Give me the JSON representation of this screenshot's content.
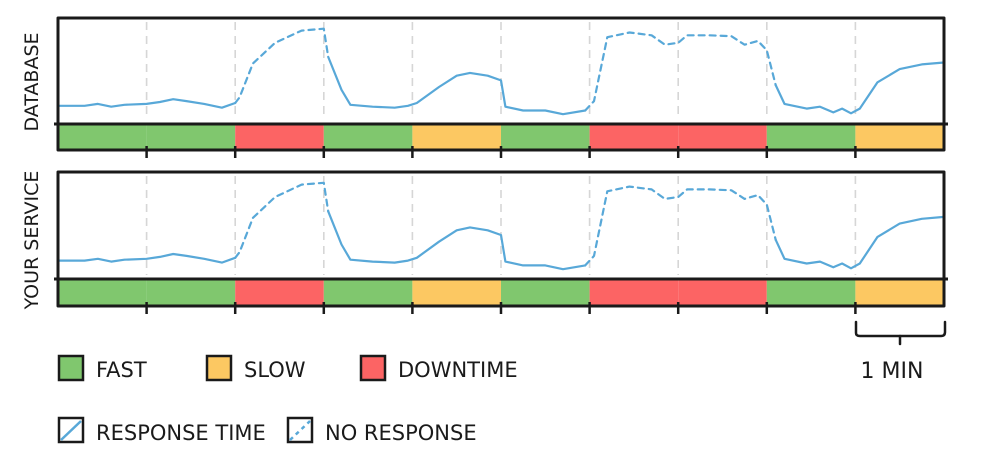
{
  "panels": [
    {
      "label": "DATABASE",
      "statuses": [
        "fast",
        "fast",
        "downtime",
        "fast",
        "slow",
        "fast",
        "downtime",
        "downtime",
        "fast",
        "slow"
      ],
      "response": [
        {
          "t": 0.0,
          "v": 0.13
        },
        {
          "t": 0.3,
          "v": 0.13
        },
        {
          "t": 0.45,
          "v": 0.15
        },
        {
          "t": 0.6,
          "v": 0.12
        },
        {
          "t": 0.75,
          "v": 0.14
        },
        {
          "t": 1.0,
          "v": 0.15
        },
        {
          "t": 1.15,
          "v": 0.17
        },
        {
          "t": 1.3,
          "v": 0.2
        },
        {
          "t": 1.45,
          "v": 0.18
        },
        {
          "t": 1.65,
          "v": 0.15
        },
        {
          "t": 1.85,
          "v": 0.11
        },
        {
          "t": 2.0,
          "v": 0.16
        },
        {
          "t": 2.05,
          "v": 0.22
        },
        {
          "t": 2.2,
          "v": 0.58
        },
        {
          "t": 2.45,
          "v": 0.8
        },
        {
          "t": 2.75,
          "v": 0.93
        },
        {
          "t": 3.0,
          "v": 0.95
        },
        {
          "t": 3.05,
          "v": 0.65
        },
        {
          "t": 3.2,
          "v": 0.3
        },
        {
          "t": 3.3,
          "v": 0.14
        },
        {
          "t": 3.55,
          "v": 0.12
        },
        {
          "t": 3.8,
          "v": 0.11
        },
        {
          "t": 3.95,
          "v": 0.13
        },
        {
          "t": 4.05,
          "v": 0.16
        },
        {
          "t": 4.3,
          "v": 0.33
        },
        {
          "t": 4.5,
          "v": 0.45
        },
        {
          "t": 4.65,
          "v": 0.48
        },
        {
          "t": 4.85,
          "v": 0.45
        },
        {
          "t": 5.0,
          "v": 0.4
        },
        {
          "t": 5.05,
          "v": 0.12
        },
        {
          "t": 5.25,
          "v": 0.08
        },
        {
          "t": 5.5,
          "v": 0.08
        },
        {
          "t": 5.7,
          "v": 0.04
        },
        {
          "t": 5.95,
          "v": 0.08
        },
        {
          "t": 6.05,
          "v": 0.18
        },
        {
          "t": 6.2,
          "v": 0.86
        },
        {
          "t": 6.45,
          "v": 0.91
        },
        {
          "t": 6.7,
          "v": 0.88
        },
        {
          "t": 6.85,
          "v": 0.78
        },
        {
          "t": 7.0,
          "v": 0.8
        },
        {
          "t": 7.1,
          "v": 0.88
        },
        {
          "t": 7.35,
          "v": 0.88
        },
        {
          "t": 7.6,
          "v": 0.87
        },
        {
          "t": 7.75,
          "v": 0.78
        },
        {
          "t": 7.9,
          "v": 0.82
        },
        {
          "t": 8.0,
          "v": 0.72
        },
        {
          "t": 8.1,
          "v": 0.35
        },
        {
          "t": 8.2,
          "v": 0.15
        },
        {
          "t": 8.45,
          "v": 0.1
        },
        {
          "t": 8.6,
          "v": 0.12
        },
        {
          "t": 8.75,
          "v": 0.06
        },
        {
          "t": 8.85,
          "v": 0.1
        },
        {
          "t": 8.95,
          "v": 0.05
        },
        {
          "t": 9.05,
          "v": 0.1
        },
        {
          "t": 9.25,
          "v": 0.38
        },
        {
          "t": 9.5,
          "v": 0.52
        },
        {
          "t": 9.75,
          "v": 0.57
        },
        {
          "t": 10.0,
          "v": 0.59
        }
      ]
    },
    {
      "label": "YOUR SERVICE",
      "statuses": [
        "fast",
        "fast",
        "downtime",
        "fast",
        "slow",
        "fast",
        "downtime",
        "downtime",
        "fast",
        "slow"
      ],
      "response": [
        {
          "t": 0.0,
          "v": 0.13
        },
        {
          "t": 0.3,
          "v": 0.13
        },
        {
          "t": 0.45,
          "v": 0.15
        },
        {
          "t": 0.6,
          "v": 0.12
        },
        {
          "t": 0.75,
          "v": 0.14
        },
        {
          "t": 1.0,
          "v": 0.15
        },
        {
          "t": 1.15,
          "v": 0.17
        },
        {
          "t": 1.3,
          "v": 0.2
        },
        {
          "t": 1.45,
          "v": 0.18
        },
        {
          "t": 1.65,
          "v": 0.15
        },
        {
          "t": 1.85,
          "v": 0.11
        },
        {
          "t": 2.0,
          "v": 0.16
        },
        {
          "t": 2.05,
          "v": 0.22
        },
        {
          "t": 2.2,
          "v": 0.58
        },
        {
          "t": 2.45,
          "v": 0.8
        },
        {
          "t": 2.75,
          "v": 0.93
        },
        {
          "t": 3.0,
          "v": 0.95
        },
        {
          "t": 3.05,
          "v": 0.65
        },
        {
          "t": 3.2,
          "v": 0.3
        },
        {
          "t": 3.3,
          "v": 0.14
        },
        {
          "t": 3.55,
          "v": 0.12
        },
        {
          "t": 3.8,
          "v": 0.11
        },
        {
          "t": 3.95,
          "v": 0.13
        },
        {
          "t": 4.05,
          "v": 0.16
        },
        {
          "t": 4.3,
          "v": 0.33
        },
        {
          "t": 4.5,
          "v": 0.45
        },
        {
          "t": 4.65,
          "v": 0.48
        },
        {
          "t": 4.85,
          "v": 0.45
        },
        {
          "t": 5.0,
          "v": 0.4
        },
        {
          "t": 5.05,
          "v": 0.12
        },
        {
          "t": 5.25,
          "v": 0.08
        },
        {
          "t": 5.5,
          "v": 0.08
        },
        {
          "t": 5.7,
          "v": 0.04
        },
        {
          "t": 5.95,
          "v": 0.08
        },
        {
          "t": 6.05,
          "v": 0.18
        },
        {
          "t": 6.2,
          "v": 0.86
        },
        {
          "t": 6.45,
          "v": 0.91
        },
        {
          "t": 6.7,
          "v": 0.88
        },
        {
          "t": 6.85,
          "v": 0.78
        },
        {
          "t": 7.0,
          "v": 0.8
        },
        {
          "t": 7.1,
          "v": 0.88
        },
        {
          "t": 7.35,
          "v": 0.88
        },
        {
          "t": 7.6,
          "v": 0.87
        },
        {
          "t": 7.75,
          "v": 0.78
        },
        {
          "t": 7.9,
          "v": 0.82
        },
        {
          "t": 8.0,
          "v": 0.72
        },
        {
          "t": 8.1,
          "v": 0.35
        },
        {
          "t": 8.2,
          "v": 0.15
        },
        {
          "t": 8.45,
          "v": 0.1
        },
        {
          "t": 8.6,
          "v": 0.12
        },
        {
          "t": 8.75,
          "v": 0.06
        },
        {
          "t": 8.85,
          "v": 0.1
        },
        {
          "t": 8.95,
          "v": 0.05
        },
        {
          "t": 9.05,
          "v": 0.1
        },
        {
          "t": 9.25,
          "v": 0.38
        },
        {
          "t": 9.5,
          "v": 0.52
        },
        {
          "t": 9.75,
          "v": 0.57
        },
        {
          "t": 10.0,
          "v": 0.59
        }
      ]
    }
  ],
  "no_response_ranges": [
    [
      2.05,
      3.05
    ],
    [
      6.05,
      8.1
    ]
  ],
  "colors": {
    "fast": "#80c76e",
    "slow": "#fcc862",
    "downtime": "#fc6464",
    "line": "#58a8d8",
    "ink": "#1a1a1a",
    "grid": "#d6d6d6"
  },
  "legend": {
    "fast": "FAST",
    "slow": "SLOW",
    "downtime": "DOWNTIME",
    "response_time": "RESPONSE TIME",
    "no_response": "NO RESPONSE"
  },
  "scale_label": "1 MIN"
}
